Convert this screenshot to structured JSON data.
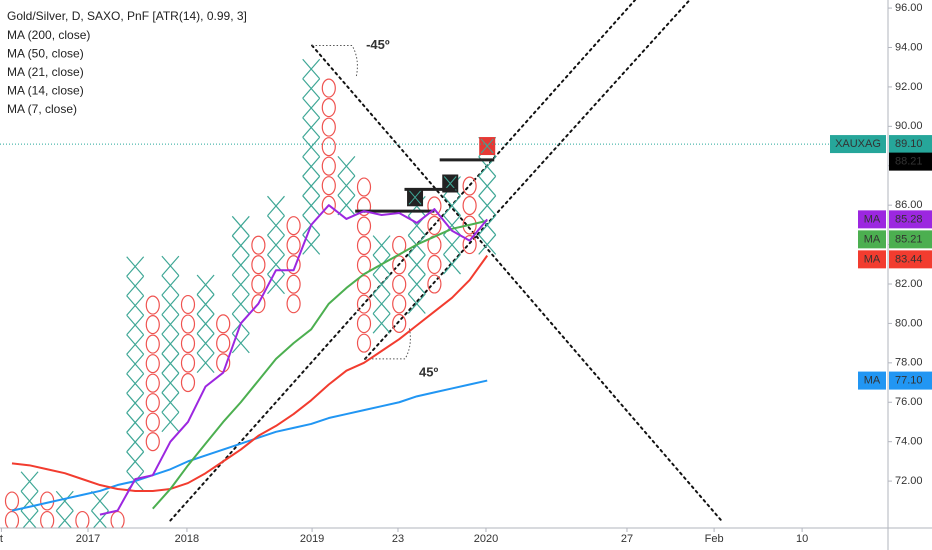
{
  "chart_data": {
    "type": "pnf",
    "title": "Gold/Silver, D, SAXO, PnF [ATR(14), 0.99, 3]",
    "box_size": 0.99,
    "xlim": [
      -0.68,
      49.77
    ],
    "ylim": [
      69.62,
      96.41
    ],
    "xticks": [
      {
        "value": -0.6,
        "label": "t"
      },
      {
        "value": 4.32,
        "label": "2017"
      },
      {
        "value": 9.94,
        "label": "2018"
      },
      {
        "value": 17.05,
        "label": "2019"
      },
      {
        "value": 21.93,
        "label": "23"
      },
      {
        "value": 26.93,
        "label": "2020"
      },
      {
        "value": 34.94,
        "label": "27"
      },
      {
        "value": 39.89,
        "label": "Feb"
      },
      {
        "value": 44.89,
        "label": "10"
      }
    ],
    "yticks": [
      {
        "value": 72,
        "label": "72.00"
      },
      {
        "value": 74,
        "label": "74.00"
      },
      {
        "value": 76,
        "label": "76.00"
      },
      {
        "value": 78,
        "label": "78.00"
      },
      {
        "value": 80,
        "label": "80.00"
      },
      {
        "value": 82,
        "label": "82.00"
      },
      {
        "value": 84,
        "label": "84.00"
      },
      {
        "value": 86,
        "label": "86.00"
      },
      {
        "value": 88,
        "label": "88.00"
      },
      {
        "value": 90,
        "label": "90.00"
      },
      {
        "value": 92,
        "label": "92.00"
      },
      {
        "value": 94,
        "label": "94.00"
      },
      {
        "value": 96,
        "label": "96.00"
      }
    ],
    "x_color": "#3fa796",
    "o_color": "#ef5350",
    "x": [
      0,
      1,
      2,
      3,
      4,
      5,
      6,
      7,
      8,
      9,
      10,
      11,
      12,
      13,
      14,
      15,
      16,
      17,
      18,
      19,
      20,
      21,
      22,
      23,
      24,
      25,
      26,
      27
    ],
    "columns": {
      "kind": [
        "O",
        "X",
        "O",
        "X",
        "O",
        "X",
        "O",
        "X",
        "O",
        "X",
        "O",
        "X",
        "O",
        "X",
        "O",
        "X",
        "O",
        "X",
        "O",
        "X",
        "O",
        "X",
        "O",
        "X",
        "O",
        "X",
        "O",
        "X"
      ],
      "low": [
        70,
        70,
        70,
        70,
        70,
        70,
        70,
        72,
        74,
        75,
        77,
        78,
        78,
        79,
        81,
        82,
        81,
        84,
        86,
        86,
        79,
        80,
        80,
        81,
        82,
        83,
        84,
        84
      ],
      "high": [
        71,
        72,
        71,
        71,
        70,
        71,
        70,
        83,
        81,
        83,
        81,
        82,
        80,
        85,
        84,
        86,
        85,
        93,
        92,
        88,
        87,
        84,
        84,
        86,
        86,
        87,
        87,
        89
      ]
    },
    "series": [
      {
        "name": "MA (200, close)",
        "color": "#888888",
        "values": [
          null,
          null,
          null,
          null,
          null,
          null,
          null,
          null,
          null,
          null,
          null,
          null,
          null,
          null,
          null,
          null,
          null,
          null,
          null,
          null,
          null,
          null,
          null,
          null,
          null,
          null,
          null,
          null
        ]
      },
      {
        "name": "MA (50, close)",
        "color": "#2196f3",
        "tag": "MA",
        "last": {
          "value": 77.1,
          "label": "77.10"
        },
        "values": [
          70.5,
          70.7,
          70.9,
          71.1,
          71.3,
          71.5,
          71.8,
          72.0,
          72.3,
          72.6,
          73.0,
          73.3,
          73.6,
          73.9,
          74.2,
          74.5,
          74.7,
          74.9,
          75.2,
          75.4,
          75.6,
          75.8,
          76.0,
          76.3,
          76.5,
          76.7,
          76.9,
          77.1
        ]
      },
      {
        "name": "MA (21, close)",
        "color": "#f23c2f",
        "tag": "MA",
        "last": {
          "value": 83.44,
          "label": "83.44"
        },
        "values": [
          72.9,
          72.8,
          72.6,
          72.4,
          72.1,
          71.8,
          71.6,
          71.5,
          71.5,
          71.6,
          71.9,
          72.4,
          73.0,
          73.6,
          74.3,
          74.8,
          75.4,
          76.1,
          76.9,
          77.6,
          78.0,
          78.6,
          79.2,
          79.9,
          80.6,
          81.3,
          82.2,
          83.44
        ]
      },
      {
        "name": "MA (14, close)",
        "color": "#4caf50",
        "tag": "MA",
        "last": {
          "value": 85.21,
          "label": "85.21"
        },
        "values": [
          null,
          null,
          null,
          null,
          null,
          null,
          null,
          null,
          70.6,
          71.6,
          72.8,
          73.9,
          75.0,
          76.0,
          77.1,
          78.2,
          79.0,
          79.7,
          81.0,
          81.8,
          82.5,
          83.0,
          83.5,
          84.0,
          84.4,
          84.8,
          85.0,
          85.21
        ]
      },
      {
        "name": "MA (7, close)",
        "color": "#9c27e0",
        "tag": "MA",
        "last": {
          "value": 85.28,
          "label": "85.28"
        },
        "values": [
          null,
          null,
          null,
          null,
          null,
          70.3,
          70.5,
          72.1,
          72.3,
          74.0,
          75.0,
          76.8,
          77.5,
          80.0,
          81.0,
          82.7,
          82.7,
          85.0,
          86.0,
          85.3,
          85.7,
          85.5,
          85.6,
          85.1,
          85.8,
          84.7,
          84.2,
          85.28
        ]
      }
    ],
    "last_price": {
      "name": "XAUXAG",
      "value": 89.1,
      "label": "89.10",
      "color": "#26a69a"
    },
    "reversal": {
      "value": 88.21,
      "color": "#000000"
    },
    "level_lines": [
      {
        "x": [
          19.5,
          24.0
        ],
        "value": 85.7
      },
      {
        "x": [
          22.3,
          25.2
        ],
        "value": 86.8
      },
      {
        "x": [
          24.3,
          27.4
        ],
        "value": 88.3
      }
    ],
    "highlight_boxes": [
      {
        "x": 22.9,
        "value": 86.4,
        "color": "#222222"
      },
      {
        "x": 24.9,
        "value": 87.1,
        "color": "#222222"
      },
      {
        "x": 27,
        "value": 89.0,
        "color": "#e53935"
      }
    ],
    "trendlines": [
      {
        "label": "-45º",
        "from": [
          17.05,
          94.1
        ],
        "to": [
          40.3,
          70.0
        ]
      },
      {
        "label": "45º",
        "from": [
          20.06,
          78.2
        ],
        "to": [
          38.5,
          96.41
        ]
      },
      {
        "from": [
          9.0,
          70.0
        ],
        "to": [
          35.4,
          96.41
        ]
      }
    ]
  }
}
